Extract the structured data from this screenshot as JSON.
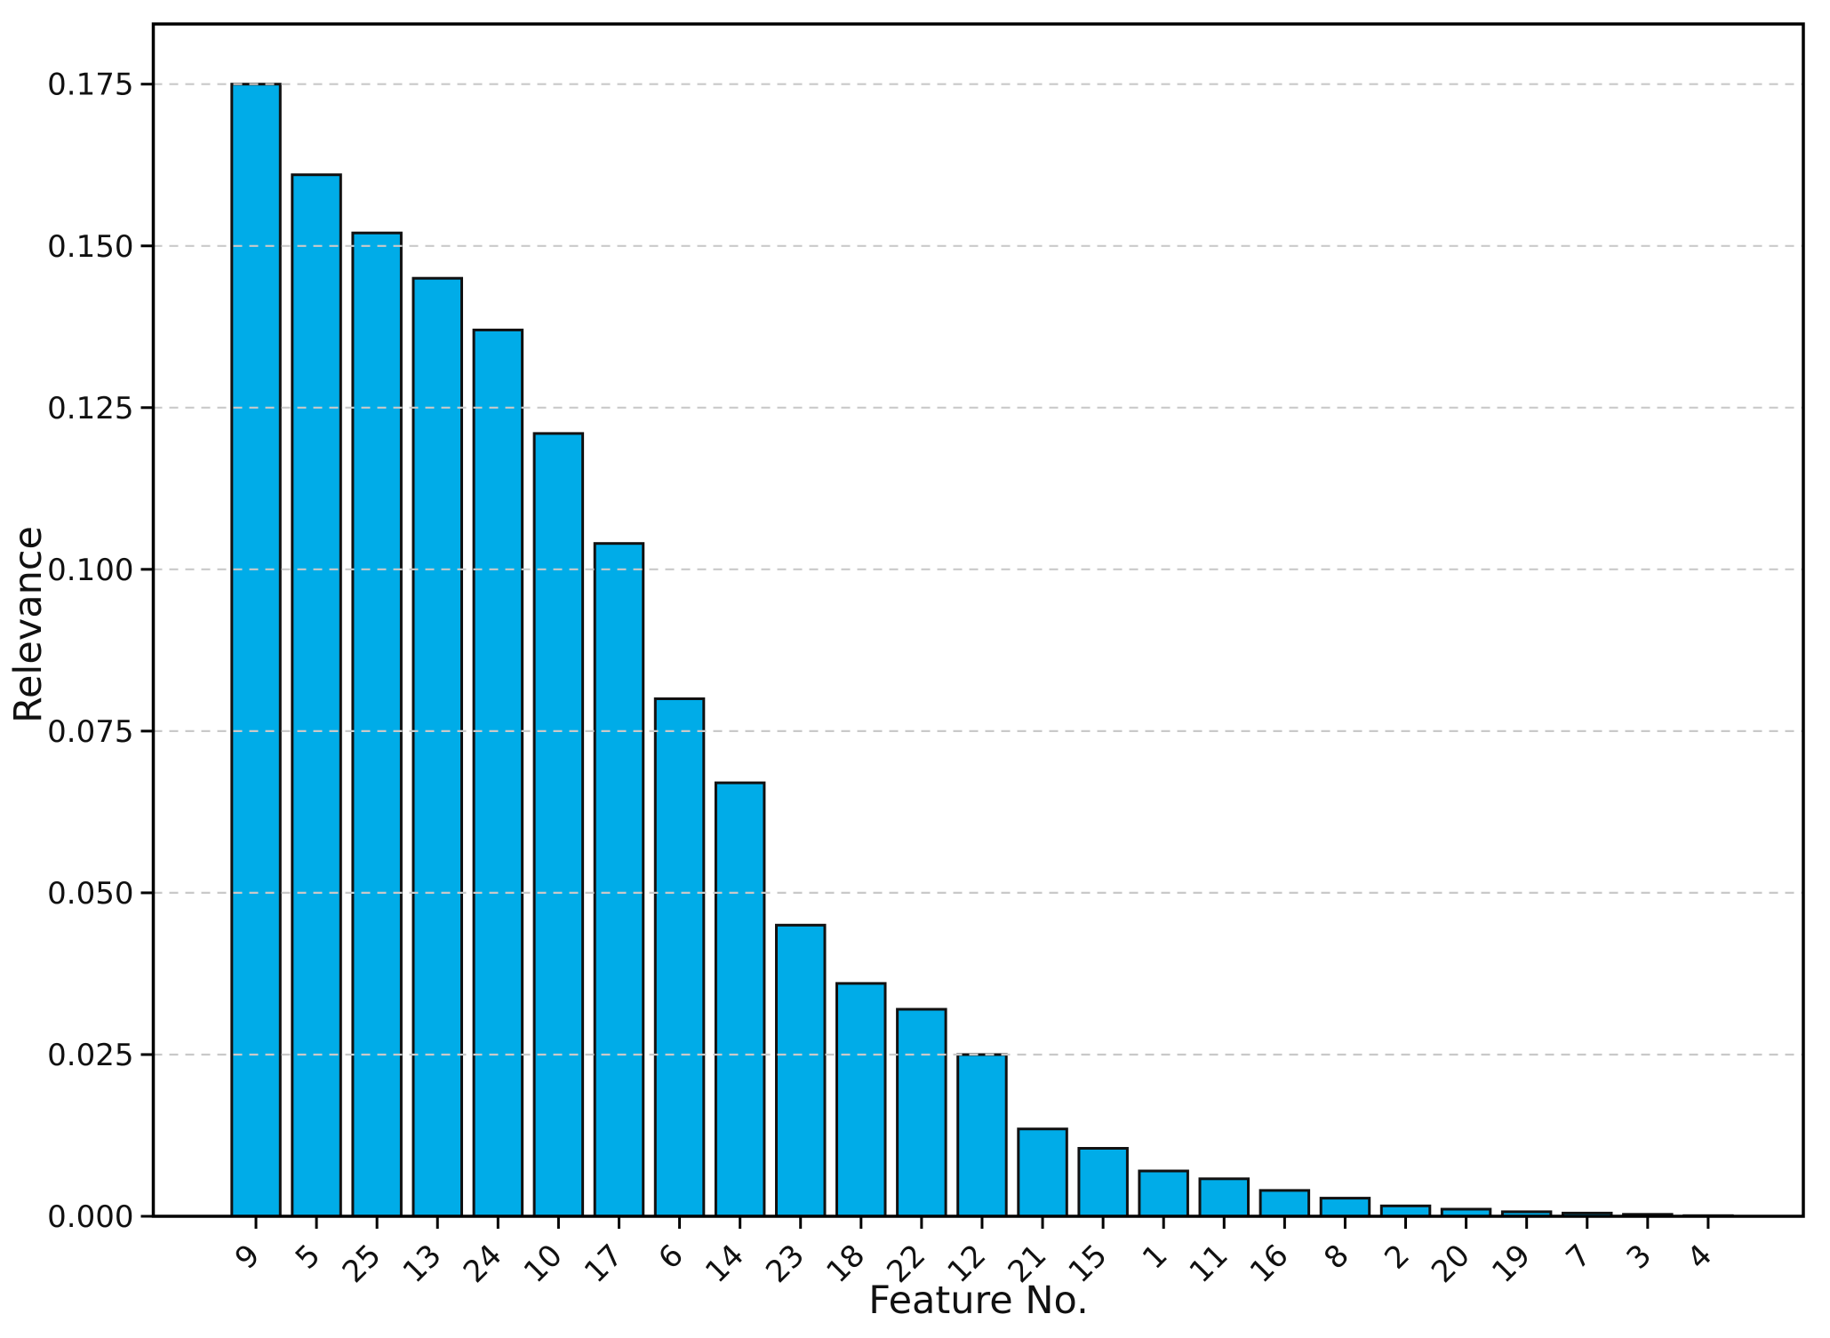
{
  "chart_data": {
    "type": "bar",
    "title": "",
    "xlabel": "Feature No.",
    "ylabel": "Relevance",
    "categories": [
      "9",
      "5",
      "25",
      "13",
      "24",
      "10",
      "17",
      "6",
      "14",
      "23",
      "18",
      "22",
      "12",
      "21",
      "15",
      "1",
      "11",
      "16",
      "8",
      "2",
      "20",
      "19",
      "7",
      "3",
      "4"
    ],
    "values": [
      0.175,
      0.161,
      0.152,
      0.145,
      0.137,
      0.121,
      0.104,
      0.08,
      0.067,
      0.045,
      0.036,
      0.032,
      0.025,
      0.0135,
      0.0105,
      0.007,
      0.0058,
      0.004,
      0.0028,
      0.0016,
      0.0011,
      0.0007,
      0.0005,
      0.0003,
      0.0001
    ],
    "ylim": [
      0,
      0.1843
    ],
    "yticks": [
      0.0,
      0.025,
      0.05,
      0.075,
      0.1,
      0.125,
      0.15,
      0.175
    ],
    "ytick_labels": [
      "0.000",
      "0.025",
      "0.050",
      "0.075",
      "0.100",
      "0.125",
      "0.150",
      "0.175"
    ],
    "xtick_rotation_deg": 45,
    "grid": {
      "axis": "y",
      "style": "dashed",
      "above_bars": true
    },
    "legend": "none",
    "colors": {
      "bar_fill": "#00ACE8",
      "bar_edge": "#111111",
      "grid_line": "#c9c9c9",
      "spine": "#000000",
      "background": "#ffffff"
    }
  }
}
